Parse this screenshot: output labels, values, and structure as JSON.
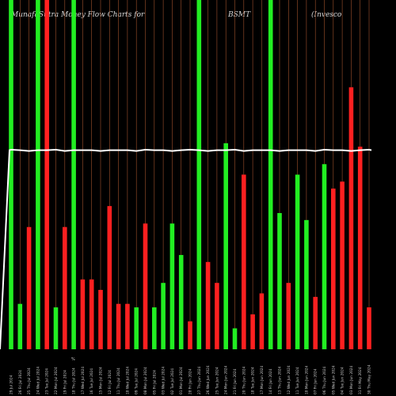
{
  "title_parts": [
    "MunafaSutra  Money Flow  Charts for",
    "BSMT",
    "(Invesco"
  ],
  "stray_mark": "%",
  "colors": {
    "background": "#000000",
    "up": "#22ee22",
    "down": "#ff2020",
    "guide": "#a0522d",
    "avg_line": "#ffffff"
  },
  "chart_data": {
    "type": "bar",
    "title": "MunafaSutra Money Flow Charts for BSMT (Invesco",
    "ylim": [
      0,
      100
    ],
    "average_level": 57,
    "categories": [
      "29 Jul 2024",
      "26 Fri Jul 2024",
      "25 Thu Jul 2024",
      "24 Wed Jul 2024",
      "23 Tue Jul 2024",
      "22 Mon Jul 2024",
      "19 Fri Jul 2024",
      "18 Thu Jul 2024",
      "17 Wed Jul 2024",
      "16 Tue Jul 2024",
      "15 Mon Jul 2024",
      "12 Fri Jul 2024",
      "11 Thu Jul 2024",
      "10 Wed Jul 2024",
      "09 Tue Jul 2024",
      "08 Mon Jul 2024",
      "05 Fri Jul 2024",
      "03 Wed Jul 2024",
      "02 Tue Jul 2024",
      "01 Mon Jul 2024",
      "28 Fri Jun 2024",
      "27 Thu Jun 2024",
      "26 Wed Jun 2024",
      "25 Tue Jun 2024",
      "24 Mon Jun 2024",
      "21 Fri Jun 2024",
      "20 Thu Jun 2024",
      "18 Tue Jun 2024",
      "17 Mon Jun 2024",
      "14 Fri Jun 2024",
      "13 Thu Jun 2024",
      "12 Wed Jun 2024",
      "11 Tue Jun 2024",
      "10 Mon Jun 2024",
      "07 Fri Jun 2024",
      "06 Thu Jun 2024",
      "05 Wed Jun 2024",
      "04 Tue Jun 2024",
      "03 Mon Jun 2024",
      "31 Fri May 2024",
      "30 Thu May 2024"
    ],
    "directions": [
      "up",
      "up",
      "down",
      "up",
      "down",
      "up",
      "down",
      "up",
      "down",
      "down",
      "down",
      "down",
      "down",
      "down",
      "up",
      "down",
      "up",
      "up",
      "up",
      "up",
      "down",
      "up",
      "down",
      "down",
      "up",
      "up",
      "down",
      "down",
      "down",
      "up",
      "up",
      "down",
      "up",
      "up",
      "down",
      "up",
      "down",
      "down",
      "down",
      "down",
      "down"
    ],
    "values": [
      100,
      13,
      35,
      100,
      100,
      12,
      35,
      100,
      20,
      20,
      17,
      41,
      13,
      13,
      12,
      36,
      12,
      19,
      36,
      27,
      8,
      100,
      25,
      19,
      59,
      6,
      50,
      10,
      16,
      100,
      39,
      19,
      50,
      37,
      15,
      53,
      46,
      48,
      75,
      58,
      12
    ]
  }
}
